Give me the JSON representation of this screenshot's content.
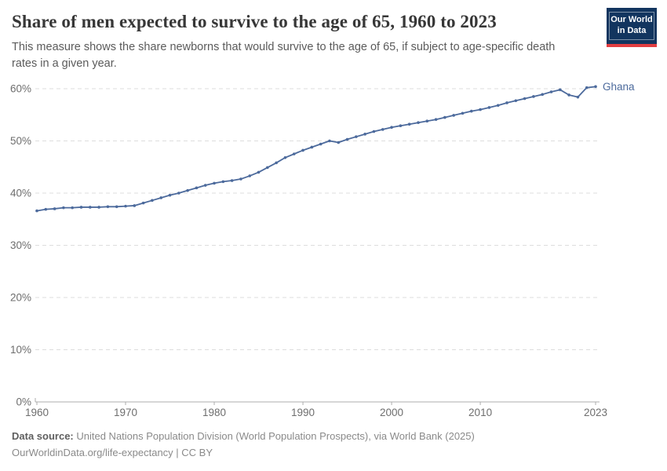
{
  "header": {
    "title": "Share of men expected to survive to the age of 65, 1960 to 2023",
    "subtitle": "This measure shows the share newborns that would survive to the age of 65, if subject to age-specific death rates in a given year.",
    "logo_line1": "Our World",
    "logo_line2": "in Data",
    "logo_bg_color": "#12355f",
    "logo_accent_color": "#e23d41"
  },
  "chart_data": {
    "type": "line",
    "title": "Share of men expected to survive to the age of 65, 1960 to 2023",
    "xlabel": "",
    "ylabel": "",
    "xlim": [
      1960,
      2023
    ],
    "ylim": [
      0,
      60
    ],
    "grid": "horizontal-dashed",
    "legend_position": "end-of-line-label",
    "x_tick_years": [
      1960,
      1970,
      1980,
      1990,
      2000,
      2010,
      2023
    ],
    "y_tick_values": [
      0,
      10,
      20,
      30,
      40,
      50,
      60
    ],
    "y_tick_labels": [
      "0%",
      "10%",
      "20%",
      "30%",
      "40%",
      "50%",
      "60%"
    ],
    "line_color": "#4c6a9c",
    "axis_text_color": "#6e6e6e",
    "grid_color": "#dddddd",
    "axis_line_color": "#adadad",
    "series": [
      {
        "name": "Ghana",
        "x": [
          1960,
          1961,
          1962,
          1963,
          1964,
          1965,
          1966,
          1967,
          1968,
          1969,
          1970,
          1971,
          1972,
          1973,
          1974,
          1975,
          1976,
          1977,
          1978,
          1979,
          1980,
          1981,
          1982,
          1983,
          1984,
          1985,
          1986,
          1987,
          1988,
          1989,
          1990,
          1991,
          1992,
          1993,
          1994,
          1995,
          1996,
          1997,
          1998,
          1999,
          2000,
          2001,
          2002,
          2003,
          2004,
          2005,
          2006,
          2007,
          2008,
          2009,
          2010,
          2011,
          2012,
          2013,
          2014,
          2015,
          2016,
          2017,
          2018,
          2019,
          2020,
          2021,
          2022,
          2023
        ],
        "values": [
          36.6,
          36.9,
          37.0,
          37.2,
          37.2,
          37.3,
          37.3,
          37.3,
          37.4,
          37.4,
          37.5,
          37.6,
          38.1,
          38.6,
          39.1,
          39.6,
          40.0,
          40.5,
          41.0,
          41.5,
          41.9,
          42.2,
          42.4,
          42.7,
          43.3,
          44.0,
          44.9,
          45.8,
          46.8,
          47.5,
          48.2,
          48.8,
          49.4,
          50.0,
          49.7,
          50.3,
          50.8,
          51.3,
          51.8,
          52.2,
          52.6,
          52.9,
          53.2,
          53.5,
          53.8,
          54.1,
          54.5,
          54.9,
          55.3,
          55.7,
          56.0,
          56.4,
          56.8,
          57.3,
          57.7,
          58.1,
          58.5,
          58.9,
          59.4,
          59.8,
          58.8,
          58.4,
          60.2,
          60.4
        ]
      }
    ]
  },
  "footer": {
    "source_label": "Data source:",
    "source_text": " United Nations Population Division (World Population Prospects), via World Bank (2025)",
    "link_text": "OurWorldinData.org/life-expectancy",
    "license_text": " | CC BY"
  }
}
